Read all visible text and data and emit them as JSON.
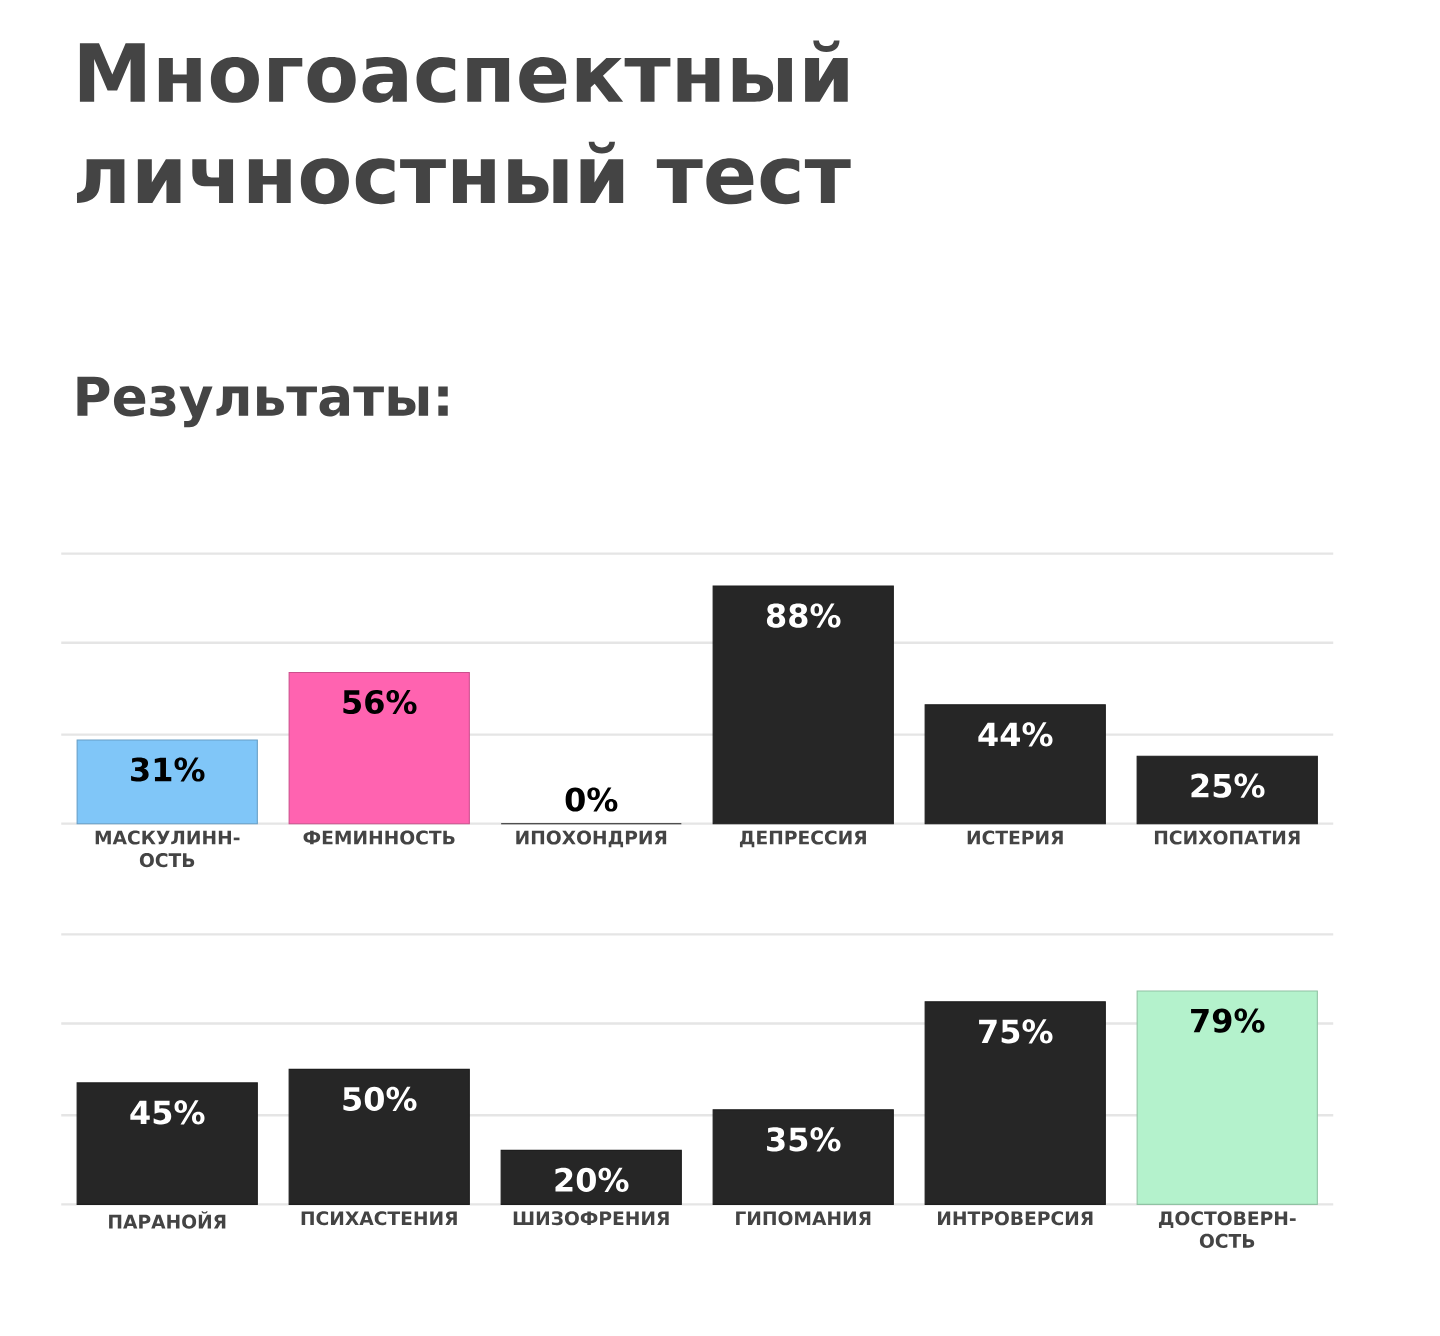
{
  "chart_data": [
    {
      "type": "bar",
      "title": "Многоаспектный личностный тест",
      "subtitle": "Результаты:",
      "categories": [
        "МАСКУЛИНН-ОСТЬ",
        "ФЕМИННОСТЬ",
        "ИПОХОНДРИЯ",
        "ДЕПРЕССИЯ",
        "ИСТЕРИЯ",
        "ПСИХОПАТИЯ"
      ],
      "values": [
        31,
        56,
        0,
        88,
        44,
        25
      ],
      "colors": [
        "#80c6f8",
        "#ff63b0",
        "#262626",
        "#262626",
        "#262626",
        "#262626"
      ],
      "value_labels": [
        "31%",
        "56%",
        "0%",
        "88%",
        "44%",
        "25%"
      ],
      "ylim": [
        0,
        100
      ],
      "yticks": [
        {
          "value": 0,
          "label": null
        },
        {
          "value": 33,
          "label": null
        },
        {
          "value": 67,
          "label": null
        },
        {
          "value": 100,
          "label": null
        }
      ],
      "grid": "y",
      "tick_labels": "x"
    },
    {
      "type": "bar",
      "categories": [
        "ПАРАНОЙЯ",
        "ПСИХАСТЕНИЯ",
        "ШИЗОФРЕНИЯ",
        "ГИПОМАНИЯ",
        "ИНТРОВЕРСИЯ",
        "ДОСТОВЕРН-ОСТЬ"
      ],
      "values": [
        45,
        50,
        20,
        35,
        75,
        79
      ],
      "colors": [
        "#262626",
        "#262626",
        "#262626",
        "#262626",
        "#262626",
        "#b4f2cc"
      ],
      "value_labels": [
        "45%",
        "50%",
        "20%",
        "35%",
        "75%",
        "79%"
      ],
      "ylim": [
        0,
        100
      ],
      "yticks": [
        {
          "value": 0,
          "label": null
        },
        {
          "value": 33,
          "label": null
        },
        {
          "value": 67,
          "label": null
        },
        {
          "value": 100,
          "label": null
        }
      ],
      "grid": "y",
      "tick_labels": "x"
    }
  ]
}
